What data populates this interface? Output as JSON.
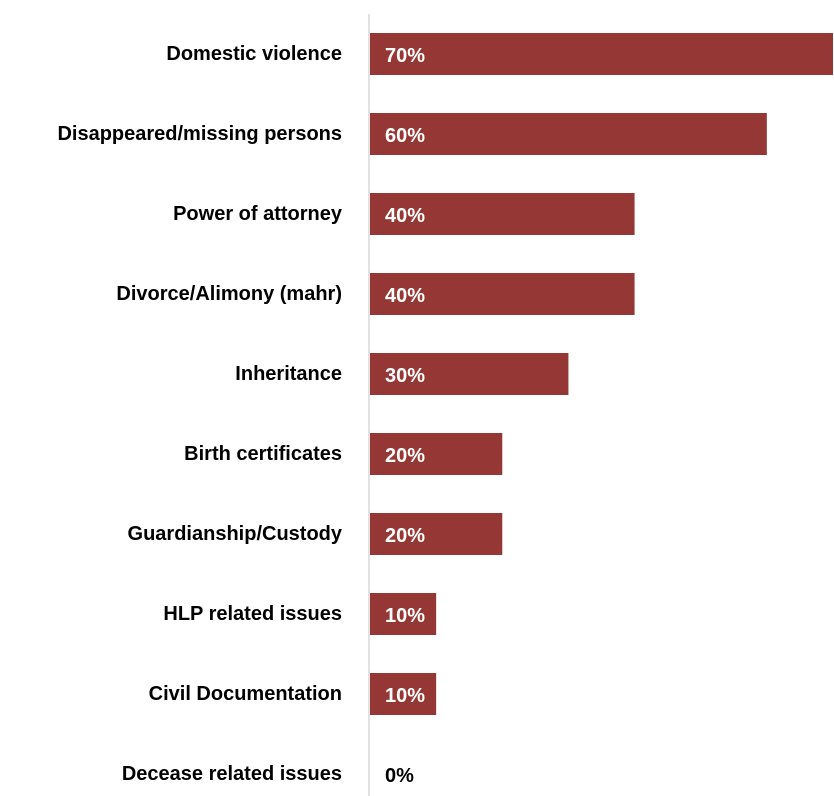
{
  "chart_data": {
    "type": "bar",
    "orientation": "horizontal",
    "title": "",
    "xlabel": "",
    "ylabel": "",
    "categories": [
      "Domestic violence",
      "Disappeared/missing persons",
      "Power of attorney",
      "Divorce/Alimony (mahr)",
      "Inheritance",
      "Birth certificates",
      "Guardianship/Custody",
      "HLP related issues",
      "Civil Documentation",
      "Decease related issues"
    ],
    "values": [
      70,
      60,
      40,
      40,
      30,
      20,
      20,
      10,
      10,
      0
    ],
    "value_labels": [
      "70%",
      "60%",
      "40%",
      "40%",
      "30%",
      "20%",
      "20%",
      "10%",
      "10%",
      "0%"
    ],
    "xlim": [
      0,
      70
    ],
    "grid": false,
    "legend": "none",
    "colors": {
      "bar": "#953735",
      "label_on_bar": "#ffffff",
      "label_off_bar": "#000000",
      "axis_line": "#d9d9d9"
    }
  }
}
